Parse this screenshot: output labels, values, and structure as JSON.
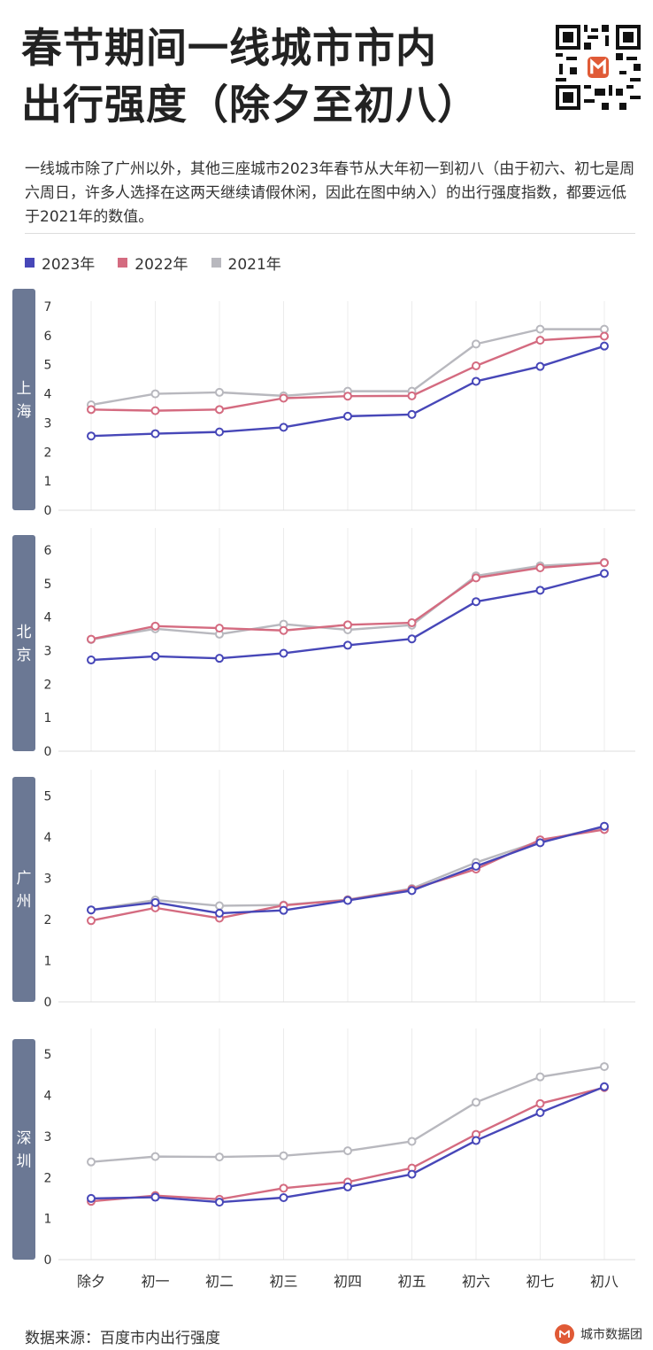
{
  "header": {
    "title_line1": "春节期间一线城市市内",
    "title_line2": "出行强度（除夕至初八）"
  },
  "description": "一线城市除了广州以外，其他三座城市2023年春节从大年初一到初八（由于初六、初七是周六周日，许多人选择在这两天继续请假休闲，因此在图中纳入）的出行强度指数，都要远低于2021年的数值。",
  "legend": [
    {
      "label": "2023年",
      "color": "#4747b8"
    },
    {
      "label": "2022年",
      "color": "#d46b80"
    },
    {
      "label": "2021年",
      "color": "#b8b8be"
    }
  ],
  "footer": {
    "source": "数据来源：百度市内出行强度",
    "brand": "城市数据团"
  },
  "chart_data": [
    {
      "type": "line",
      "panel_label": "上海",
      "categories": [
        "除夕",
        "初一",
        "初二",
        "初三",
        "初四",
        "初五",
        "初六",
        "初七",
        "初八"
      ],
      "ylim": [
        0,
        7
      ],
      "yticks": [
        "0",
        "1",
        "2",
        "3",
        "4",
        "5",
        "6",
        "7"
      ],
      "series": [
        {
          "name": "2023年",
          "values": [
            2.55,
            2.63,
            2.69,
            2.85,
            3.23,
            3.29,
            4.43,
            4.94,
            5.64
          ]
        },
        {
          "name": "2022年",
          "values": [
            3.46,
            3.42,
            3.46,
            3.85,
            3.92,
            3.93,
            4.96,
            5.84,
            5.98
          ]
        },
        {
          "name": "2021年",
          "values": [
            3.62,
            4.0,
            4.05,
            3.93,
            4.09,
            4.09,
            5.71,
            6.22,
            6.22
          ]
        }
      ]
    },
    {
      "type": "line",
      "panel_label": "北京",
      "categories": [
        "除夕",
        "初一",
        "初二",
        "初三",
        "初四",
        "初五",
        "初六",
        "初七",
        "初八"
      ],
      "ylim": [
        0,
        6.5
      ],
      "yticks": [
        "0",
        "1",
        "2",
        "3",
        "4",
        "5",
        "6"
      ],
      "series": [
        {
          "name": "2023年",
          "values": [
            2.72,
            2.83,
            2.77,
            2.92,
            3.16,
            3.35,
            4.46,
            4.8,
            5.3
          ]
        },
        {
          "name": "2022年",
          "values": [
            3.34,
            3.73,
            3.67,
            3.6,
            3.77,
            3.83,
            5.17,
            5.47,
            5.62
          ]
        },
        {
          "name": "2021年",
          "values": [
            3.33,
            3.65,
            3.49,
            3.79,
            3.62,
            3.76,
            5.23,
            5.53,
            5.63
          ]
        }
      ]
    },
    {
      "type": "line",
      "panel_label": "广州",
      "categories": [
        "除夕",
        "初一",
        "初二",
        "初三",
        "初四",
        "初五",
        "初六",
        "初七",
        "初八"
      ],
      "ylim": [
        0,
        5.5
      ],
      "yticks": [
        "0",
        "1",
        "2",
        "3",
        "4",
        "5"
      ],
      "series": [
        {
          "name": "2023年",
          "values": [
            2.23,
            2.41,
            2.15,
            2.22,
            2.46,
            2.7,
            3.29,
            3.86,
            4.26
          ]
        },
        {
          "name": "2022年",
          "values": [
            1.97,
            2.28,
            2.03,
            2.34,
            2.47,
            2.73,
            3.22,
            3.93,
            4.18
          ]
        },
        {
          "name": "2021年",
          "values": [
            2.23,
            2.47,
            2.33,
            2.35,
            2.48,
            2.75,
            3.38,
            3.9,
            4.24
          ]
        }
      ]
    },
    {
      "type": "line",
      "panel_label": "深圳",
      "categories": [
        "除夕",
        "初一",
        "初二",
        "初三",
        "初四",
        "初五",
        "初六",
        "初七",
        "初八"
      ],
      "ylim": [
        0,
        5.5
      ],
      "yticks": [
        "0",
        "1",
        "2",
        "3",
        "4",
        "5"
      ],
      "series": [
        {
          "name": "2023年",
          "values": [
            1.49,
            1.52,
            1.4,
            1.51,
            1.77,
            2.08,
            2.9,
            3.58,
            4.21
          ]
        },
        {
          "name": "2022年",
          "values": [
            1.42,
            1.56,
            1.47,
            1.74,
            1.89,
            2.23,
            3.05,
            3.8,
            4.19
          ]
        },
        {
          "name": "2021年",
          "values": [
            2.38,
            2.51,
            2.5,
            2.53,
            2.65,
            2.88,
            3.83,
            4.45,
            4.7
          ]
        }
      ]
    }
  ]
}
